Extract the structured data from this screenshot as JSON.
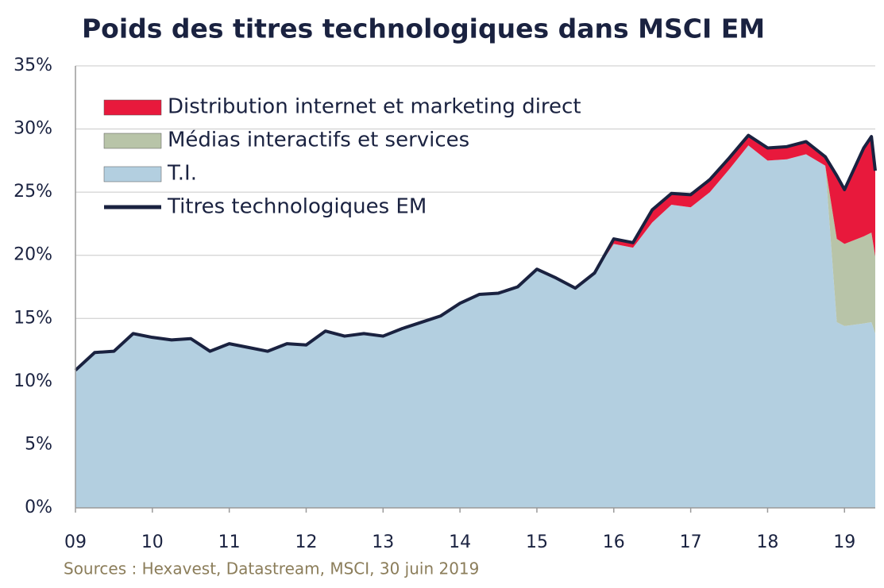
{
  "chart_data": {
    "type": "stacked_area",
    "title": "Poids des titres technologiques dans MSCI EM",
    "source": "Sources : Hexavest, Datastream, MSCI, 30 juin 2019",
    "x": [
      9,
      9.25,
      9.5,
      9.75,
      10,
      10.25,
      10.5,
      10.75,
      11,
      11.25,
      11.5,
      11.75,
      12,
      12.25,
      12.5,
      12.75,
      13,
      13.25,
      13.5,
      13.75,
      14,
      14.25,
      14.5,
      14.75,
      15,
      15.25,
      15.5,
      15.75,
      16,
      16.25,
      16.5,
      16.75,
      17,
      17.25,
      17.5,
      17.75,
      18,
      18.25,
      18.5,
      18.75,
      18.9,
      19,
      19.25,
      19.35,
      19.4
    ],
    "series": [
      {
        "name": "Distribution internet et marketing direct",
        "color": "#e8193c",
        "kind": "area",
        "values": [
          0,
          0,
          0,
          0,
          0,
          0,
          0,
          0,
          0,
          0,
          0,
          0,
          0,
          0,
          0,
          0,
          0,
          0,
          0,
          0,
          0,
          0,
          0,
          0,
          0,
          0,
          0,
          0,
          0.4,
          0.4,
          1.0,
          0.9,
          1.0,
          1.0,
          0.9,
          0.8,
          1.0,
          1.0,
          1.0,
          0.7,
          5.0,
          4.3,
          7.0,
          7.6,
          6.8
        ]
      },
      {
        "name": "Médias interactifs et services",
        "color": "#b8c4a8",
        "kind": "area",
        "values": [
          0,
          0,
          0,
          0,
          0,
          0,
          0,
          0,
          0,
          0,
          0,
          0,
          0,
          0,
          0,
          0,
          0,
          0,
          0,
          0,
          0,
          0,
          0,
          0,
          0,
          0,
          0,
          0,
          0,
          0,
          0,
          0,
          0,
          0,
          0,
          0,
          0,
          0,
          0,
          0,
          6.6,
          6.5,
          6.9,
          7.1,
          6.1
        ]
      },
      {
        "name": "T.I.",
        "color": "#b3cfe0",
        "kind": "area",
        "values": [
          10.9,
          12.3,
          12.4,
          13.8,
          13.5,
          13.3,
          13.4,
          12.4,
          13.0,
          12.7,
          12.4,
          13.0,
          12.9,
          14.0,
          13.6,
          13.8,
          13.6,
          14.2,
          14.7,
          15.2,
          16.2,
          16.9,
          17.0,
          17.5,
          18.9,
          18.2,
          17.4,
          18.6,
          20.9,
          20.6,
          22.6,
          24.0,
          23.8,
          25.0,
          26.8,
          28.7,
          27.5,
          27.6,
          28.0,
          27.1,
          14.7,
          14.4,
          14.6,
          14.7,
          13.8
        ]
      },
      {
        "name": "Titres technologiques EM",
        "color": "#1a2240",
        "kind": "line",
        "values": [
          10.9,
          12.3,
          12.4,
          13.8,
          13.5,
          13.3,
          13.4,
          12.4,
          13.0,
          12.7,
          12.4,
          13.0,
          12.9,
          14.0,
          13.6,
          13.8,
          13.6,
          14.2,
          14.7,
          15.2,
          16.2,
          16.9,
          17.0,
          17.5,
          18.9,
          18.2,
          17.4,
          18.6,
          21.3,
          21.0,
          23.6,
          24.9,
          24.8,
          26.0,
          27.7,
          29.5,
          28.5,
          28.6,
          29.0,
          27.8,
          26.3,
          25.2,
          28.5,
          29.4,
          26.7
        ]
      }
    ],
    "xlim": [
      9,
      19.4
    ],
    "xticks": [
      {
        "value": 9,
        "label": "09"
      },
      10,
      11,
      12,
      13,
      14,
      15,
      16,
      17,
      18,
      19
    ],
    "ylim": [
      0,
      35
    ],
    "yticks": [
      {
        "value": 0,
        "label": "0%"
      },
      {
        "value": 5,
        "label": "5%"
      },
      {
        "value": 10,
        "label": "10%"
      },
      {
        "value": 15,
        "label": "15%"
      },
      {
        "value": 20,
        "label": "20%"
      },
      {
        "value": 25,
        "label": "25%"
      },
      {
        "value": 30,
        "label": "30%"
      },
      {
        "value": 35,
        "label": "35%"
      }
    ],
    "grid": true,
    "legend": "upper-left"
  }
}
